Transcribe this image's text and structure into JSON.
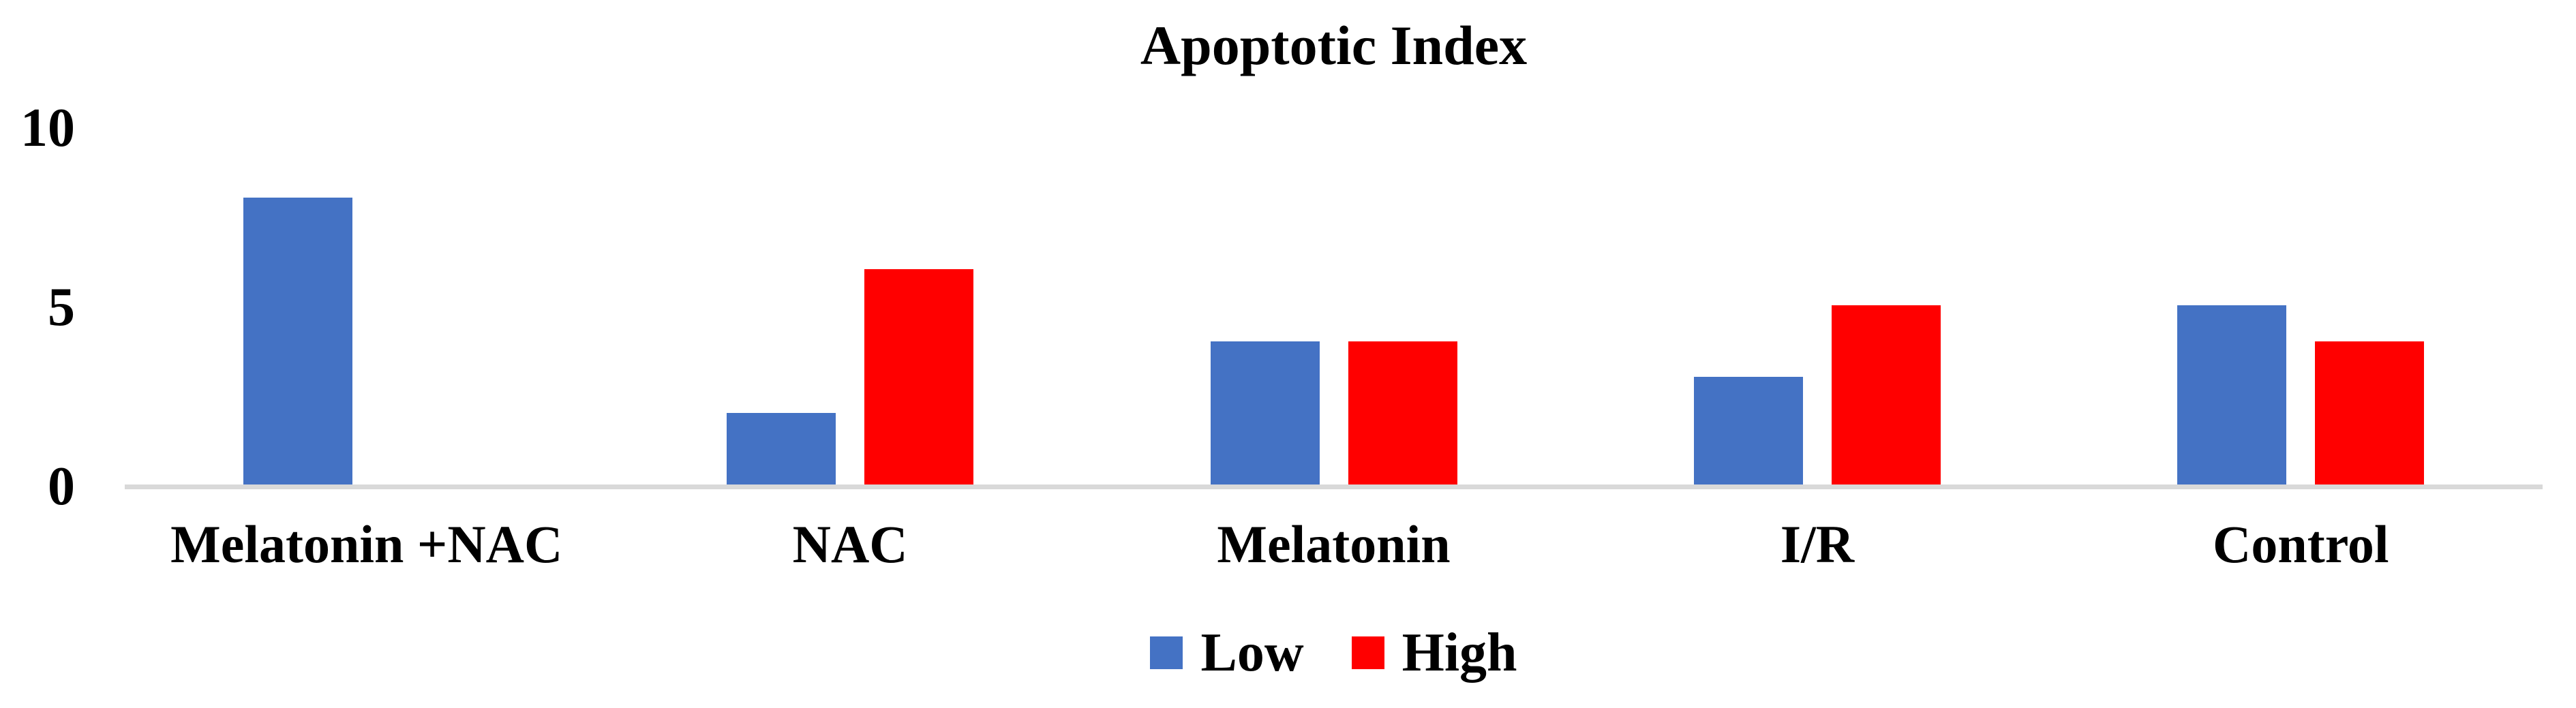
{
  "chart": {
    "title": "Apoptotic Index"
  },
  "chart_data": {
    "type": "bar",
    "title": "Apoptotic Index",
    "categories": [
      "Melatonin +NAC",
      "NAC",
      "Melatonin",
      "I/R",
      "Control"
    ],
    "series": [
      {
        "name": "Low",
        "color": "#4472C4",
        "values": [
          8,
          2,
          4,
          3,
          5
        ]
      },
      {
        "name": "High",
        "color": "#FF0000",
        "values": [
          0,
          6,
          4,
          5,
          4
        ]
      }
    ],
    "xlabel": "",
    "ylabel": "",
    "ylim": [
      0,
      10
    ],
    "yticks": [
      0,
      5,
      10
    ],
    "grid": false,
    "legend_position": "bottom",
    "axis_line_color": "#D9D9D9",
    "text_color": "#000000",
    "background": "#FFFFFF"
  }
}
